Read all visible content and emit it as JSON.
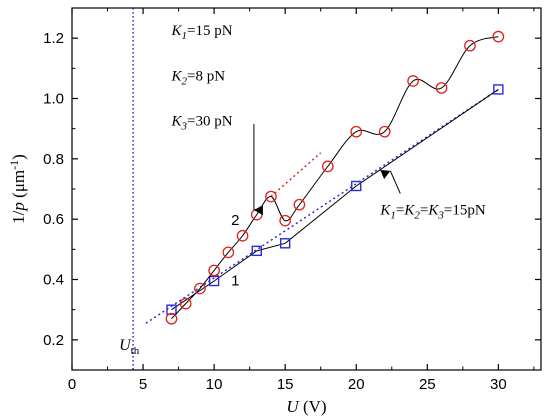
{
  "chart_data": {
    "type": "line",
    "xlabel": {
      "var": "U",
      "unit": "(V)"
    },
    "ylabel": {
      "prefix": "1/",
      "var": "p",
      "unit": "(μm",
      "exp": "-1",
      "close": ")"
    },
    "xlim": [
      0,
      33
    ],
    "ylim": [
      0.1,
      1.3
    ],
    "xticks": [
      0,
      5,
      10,
      15,
      20,
      25,
      30
    ],
    "yticks": [
      0.2,
      0.4,
      0.6,
      0.8,
      1.0,
      1.2
    ],
    "xtick_labels": [
      "0",
      "5",
      "10",
      "15",
      "20",
      "25",
      "30"
    ],
    "ytick_labels": [
      "0.2",
      "0.4",
      "0.6",
      "0.8",
      "1.0",
      "1.2"
    ],
    "grid": false,
    "series": [
      {
        "label": "1",
        "marker": "square",
        "color": "#2a2ae0",
        "points": [
          [
            7,
            0.3
          ],
          [
            10,
            0.395
          ],
          [
            13,
            0.495
          ],
          [
            15,
            0.52
          ],
          [
            20,
            0.71
          ],
          [
            30,
            1.03
          ]
        ]
      },
      {
        "label": "2",
        "marker": "circle",
        "color": "#e02020",
        "points": [
          [
            7,
            0.27
          ],
          [
            8,
            0.32
          ],
          [
            9,
            0.37
          ],
          [
            10,
            0.43
          ],
          [
            11,
            0.49
          ],
          [
            12,
            0.545
          ],
          [
            13,
            0.615
          ],
          [
            14,
            0.675
          ],
          [
            15,
            0.595
          ],
          [
            16,
            0.648
          ],
          [
            18,
            0.775
          ],
          [
            20,
            0.89
          ],
          [
            22,
            0.89
          ],
          [
            24,
            1.058
          ],
          [
            26,
            1.035
          ],
          [
            28,
            1.175
          ],
          [
            30,
            1.205
          ]
        ]
      }
    ],
    "fit_lines": [
      {
        "color": "#2a2ae0",
        "style": "dotted",
        "from": [
          5.2,
          0.255
        ],
        "to": [
          30,
          1.03
        ]
      },
      {
        "color": "#e02020",
        "style": "dotted",
        "from": [
          14,
          0.675
        ],
        "to": [
          17.5,
          0.82
        ]
      }
    ],
    "threshold": {
      "x": 4.3,
      "label_main": "U",
      "label_sub": "th",
      "color": "#2a2ae0"
    },
    "annotations": {
      "params_case2": [
        {
          "k": "K",
          "sub": "1",
          "value": "=15 pN"
        },
        {
          "k": "K",
          "sub": "2",
          "value": "=8 pN"
        },
        {
          "k": "K",
          "sub": "3",
          "value": "=30 pN"
        }
      ],
      "params_case1": {
        "parts": [
          {
            "k": "K",
            "sub": "1",
            "value": "="
          },
          {
            "k": "K",
            "sub": "2",
            "value": "="
          },
          {
            "k": "K",
            "sub": "3",
            "value": "=15pN"
          }
        ]
      },
      "curve_label_1": "1",
      "curve_label_2": "2"
    }
  }
}
